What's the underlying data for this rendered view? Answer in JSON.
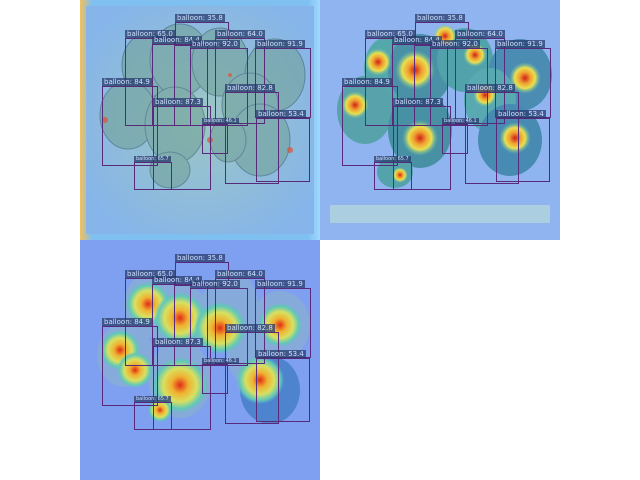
{
  "panels": [
    {
      "id": "panel-1",
      "style": "gradient-map",
      "detections": [
        {
          "label": "balloon: 35.8"
        },
        {
          "label": "balloon: 65.0"
        },
        {
          "label": "balloon: 84.4"
        },
        {
          "label": "balloon: 64.0"
        },
        {
          "label": "balloon: 92.0"
        },
        {
          "label": "balloon: 91.9"
        },
        {
          "label": "balloon: 84.9"
        },
        {
          "label": "balloon: 87.3"
        },
        {
          "label": "balloon: 82.8"
        },
        {
          "label": "balloon: 53.4"
        },
        {
          "label": "balloon: 46.1"
        },
        {
          "label": "balloon: 65.7"
        }
      ]
    },
    {
      "id": "panel-2",
      "style": "heatmap-fine",
      "detections": [
        {
          "label": "balloon: 35.8"
        },
        {
          "label": "balloon: 65.0"
        },
        {
          "label": "balloon: 84.4"
        },
        {
          "label": "balloon: 64.0"
        },
        {
          "label": "balloon: 92.0"
        },
        {
          "label": "balloon: 91.9"
        },
        {
          "label": "balloon: 84.9"
        },
        {
          "label": "balloon: 87.3"
        },
        {
          "label": "balloon: 82.8"
        },
        {
          "label": "balloon: 53.4"
        },
        {
          "label": "balloon: 46.1"
        },
        {
          "label": "balloon: 65.7"
        }
      ]
    },
    {
      "id": "panel-3",
      "style": "heatmap-smooth",
      "detections": [
        {
          "label": "balloon: 35.8"
        },
        {
          "label": "balloon: 65.0"
        },
        {
          "label": "balloon: 84.4"
        },
        {
          "label": "balloon: 64.0"
        },
        {
          "label": "balloon: 92.0"
        },
        {
          "label": "balloon: 91.9"
        },
        {
          "label": "balloon: 84.9"
        },
        {
          "label": "balloon: 87.3"
        },
        {
          "label": "balloon: 82.8"
        },
        {
          "label": "balloon: 53.4"
        },
        {
          "label": "balloon: 46.1"
        },
        {
          "label": "balloon: 65.7"
        }
      ]
    }
  ],
  "colors": {
    "background": "#ffffff",
    "map_base": "#7f9ff0",
    "box_border": "#5a2a7a",
    "label_bg": "#283c6e",
    "label_text": "#cfe0ff",
    "hot": "#e03020",
    "warm": "#f0d040",
    "cool": "#40c0c0"
  }
}
